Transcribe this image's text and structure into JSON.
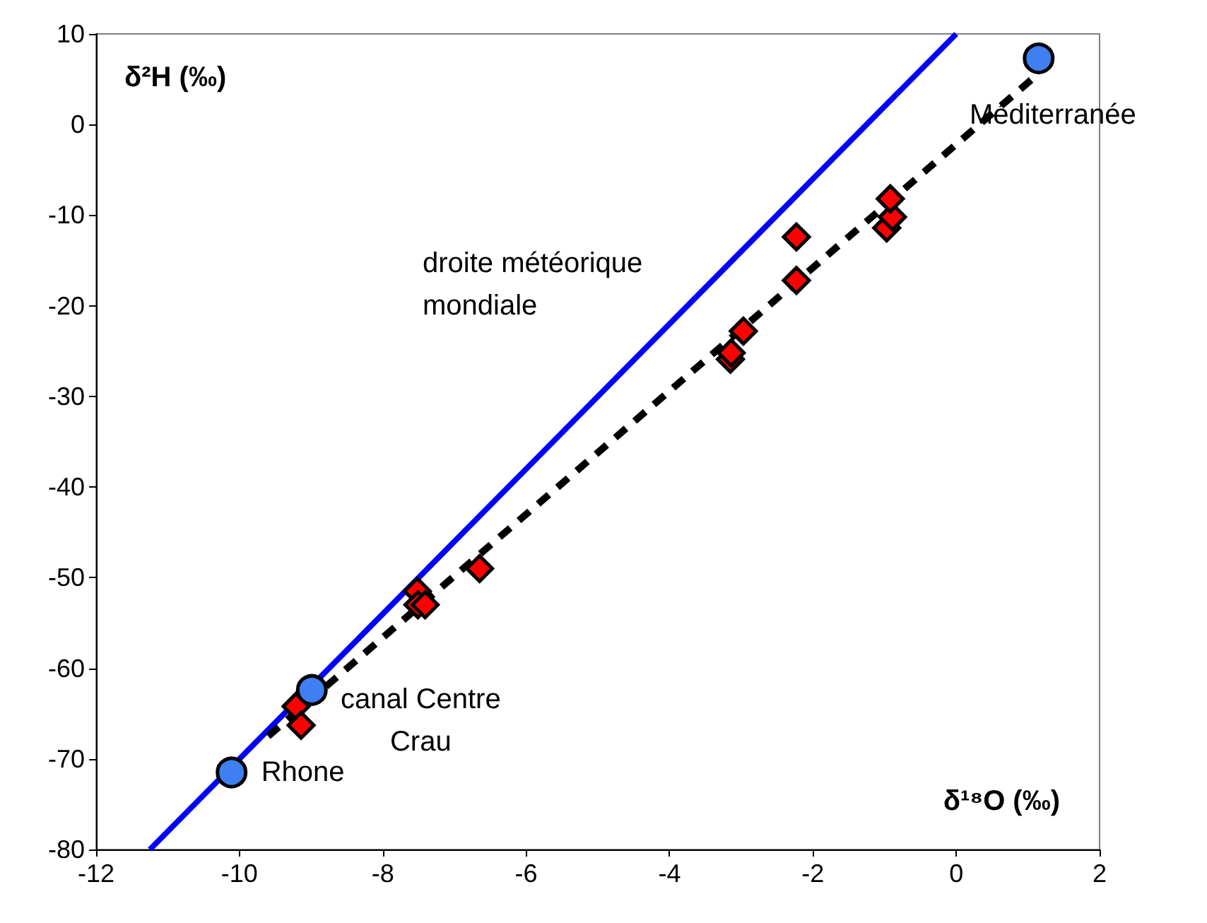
{
  "chart_data": {
    "type": "scatter",
    "xlabel": "δ¹⁸O (‰)",
    "ylabel": "δ²H (‰)",
    "xlim": [
      -12,
      2
    ],
    "xticks": [
      -12,
      -10,
      -8,
      -6,
      -4,
      -2,
      0,
      2
    ],
    "ylim": [
      -80,
      10
    ],
    "yticks": [
      -80,
      -70,
      -60,
      -50,
      -40,
      -30,
      -20,
      -10,
      0,
      10
    ],
    "grid": false,
    "series": [
      {
        "type": "line",
        "color": "#0000ff",
        "line_style": "solid",
        "marker": "none",
        "x": [
          -11.25,
          0
        ],
        "values": [
          -80,
          10
        ]
      },
      {
        "type": "line",
        "color": "#000000",
        "line_style": "dashed",
        "marker": "none",
        "x": [
          -9.6,
          1.1
        ],
        "values": [
          -67.5,
          5.3
        ]
      },
      {
        "color": "#ff0000",
        "marker": "diamond",
        "x": [
          -9.21,
          -9.14,
          -7.52,
          -7.51,
          -7.41,
          -6.65,
          -3.15,
          -3.14,
          -2.97,
          -2.23,
          -2.23,
          -0.97,
          -0.89,
          -0.92
        ],
        "values": [
          -64.2,
          -66.3,
          -51.5,
          -53.0,
          -53.0,
          -49.0,
          -25.9,
          -25.2,
          -22.8,
          -17.2,
          -12.4,
          -11.4,
          -10.2,
          -8.2
        ]
      },
      {
        "color": "#3f7ff0",
        "marker": "circle",
        "x": [
          -10.11,
          -8.99,
          1.15
        ],
        "values": [
          -71.5,
          -62.4,
          7.3
        ]
      }
    ],
    "annotations": [
      {
        "text": "Rhone",
        "x": -10.11,
        "y": -71.5
      },
      {
        "text": "canal Centre\nCrau",
        "x": -8.99,
        "y": -62.4
      },
      {
        "text": "droite météorique\nmondiale",
        "x": -3.6,
        "y": -18.8
      },
      {
        "text": "Méditerranée",
        "x": 1.15,
        "y": 7.3
      }
    ]
  }
}
